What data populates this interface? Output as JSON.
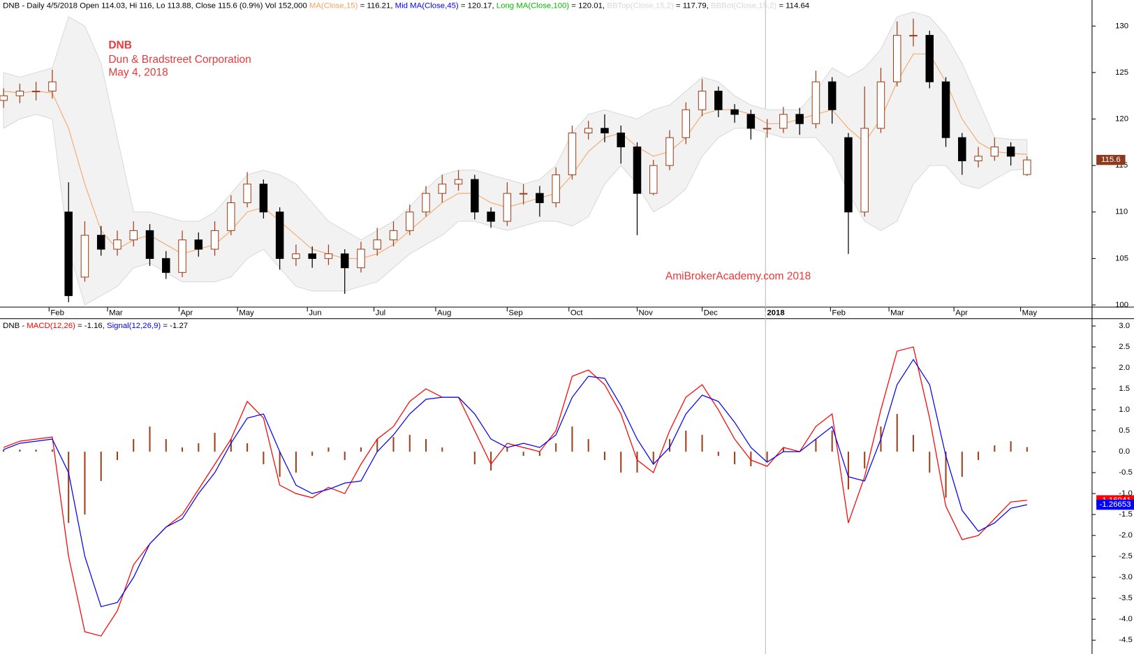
{
  "chart_data": [
    {
      "type": "candlestick",
      "header": [
        {
          "text": "DNB - Daily 4/5/2018 Open 114.03, Hi 116, Lo 113.88, Close 115.6 (0.9%) Vol 152,000 ",
          "color": "#000000"
        },
        {
          "text": "MA(Close,15)",
          "color": "#f4a460"
        },
        {
          "text": " = 116.21, ",
          "color": "#000000"
        },
        {
          "text": "Mid MA(Close,45)",
          "color": "#0000ff"
        },
        {
          "text": " = 120.17, ",
          "color": "#000000"
        },
        {
          "text": "Long MA(Close,100)",
          "color": "#00c000"
        },
        {
          "text": " = 120.01, ",
          "color": "#000000"
        },
        {
          "text": "BBTop(Close,15,2)",
          "color": "#d8d8d8"
        },
        {
          "text": " = 117.79, ",
          "color": "#000000"
        },
        {
          "text": "BBBot(Close,15,2)",
          "color": "#d8d8d8"
        },
        {
          "text": " = 114.64",
          "color": "#000000"
        }
      ],
      "annotations": [
        {
          "text": "DNB",
          "color": "#e8393b"
        },
        {
          "text": "Dun & Bradstreet Corporation",
          "color": "#e8393b"
        },
        {
          "text": "May 4, 2018",
          "color": "#e8393b"
        },
        {
          "text": "AmiBrokerAcademy.com   2018",
          "color": "#e8393b"
        }
      ],
      "up_color": "#a0401a",
      "down_color": "#000000",
      "xlim": [
        -0.22,
        67
      ],
      "xticks": [
        {
          "value": 2.8,
          "label": "Feb"
        },
        {
          "value": 6.4,
          "label": "Mar"
        },
        {
          "value": 10.8,
          "label": "Apr"
        },
        {
          "value": 14.4,
          "label": "May"
        },
        {
          "value": 18.7,
          "label": "Jun"
        },
        {
          "value": 22.8,
          "label": "Jul"
        },
        {
          "value": 26.6,
          "label": "Aug"
        },
        {
          "value": 31,
          "label": "Sep"
        },
        {
          "value": 34.8,
          "label": "Oct"
        },
        {
          "value": 39,
          "label": "Nov"
        },
        {
          "value": 43,
          "label": "Dec"
        },
        {
          "value": 46.9,
          "label": "2018"
        },
        {
          "value": 50.9,
          "label": "Feb"
        },
        {
          "value": 54.5,
          "label": "Mar"
        },
        {
          "value": 58.5,
          "label": "Apr"
        },
        {
          "value": 62.6,
          "label": "May"
        }
      ],
      "ylim": [
        99.77,
        132.8
      ],
      "yticks": [
        100,
        105,
        110,
        115,
        120,
        125,
        130
      ],
      "open": [
        122,
        122.5,
        123,
        123,
        110,
        103,
        107.5,
        106,
        107,
        108,
        105,
        103.5,
        107,
        106,
        108,
        111,
        113,
        110,
        105,
        105.5,
        105,
        105.5,
        104,
        106,
        107,
        108,
        110,
        112,
        113,
        113.5,
        110,
        109,
        112,
        112,
        111,
        114,
        118.5,
        119,
        118.5,
        117,
        112,
        115,
        118,
        121,
        123,
        121,
        120.5,
        119,
        119,
        120.5,
        119.5,
        124,
        118,
        110,
        119,
        124,
        129,
        129,
        124,
        118,
        115.5,
        116,
        117,
        114.03
      ],
      "high": [
        123.3,
        123.8,
        124,
        125.3,
        113.2,
        109,
        108.5,
        108,
        109,
        108.7,
        105.8,
        108,
        107.8,
        109,
        111.8,
        114.3,
        113.5,
        110.5,
        106.5,
        106.3,
        106.5,
        106,
        106.8,
        108.3,
        109,
        110.8,
        112.8,
        114,
        114.5,
        114,
        110.5,
        113.2,
        113,
        112.8,
        114.8,
        119.3,
        119.8,
        120.5,
        119.3,
        117.5,
        115.6,
        118.8,
        121.8,
        124.3,
        123.5,
        121.6,
        121,
        120,
        121.3,
        121.2,
        125.2,
        124.5,
        118.5,
        123.5,
        125.5,
        130.5,
        130.8,
        129.5,
        124.5,
        118.5,
        117,
        118,
        117.5,
        116
      ],
      "low": [
        121.2,
        121.7,
        122,
        122.2,
        100.3,
        102.5,
        105.3,
        105.3,
        106.3,
        104.2,
        102.8,
        103,
        105.2,
        105.3,
        107.5,
        110.5,
        109.3,
        103.8,
        104.2,
        104,
        104.3,
        101.2,
        103.5,
        105.3,
        106.3,
        107.5,
        109.5,
        111,
        112.3,
        109.2,
        108.3,
        108.5,
        110.8,
        109.5,
        110.5,
        113.5,
        117.8,
        117.5,
        115.2,
        107.5,
        111.8,
        114.5,
        117.3,
        120.3,
        120.2,
        119.6,
        117.8,
        118,
        118.5,
        118.3,
        119,
        119.5,
        105.5,
        109.5,
        118.5,
        123.5,
        127.8,
        123.3,
        117,
        114,
        114.8,
        115.5,
        115,
        113.88
      ],
      "close": [
        122.5,
        123,
        123,
        124,
        101,
        107.5,
        106,
        107,
        108,
        105,
        103.5,
        107,
        106,
        108,
        111,
        113,
        110,
        105,
        105.5,
        105,
        105.5,
        104,
        106,
        107,
        108,
        110,
        112,
        113,
        113.5,
        110,
        109,
        112,
        112,
        111,
        114,
        118.5,
        119,
        118.5,
        117,
        112,
        115,
        118,
        121,
        123,
        121,
        120.5,
        119,
        119,
        120.5,
        119.5,
        124,
        121,
        110,
        119,
        124,
        129,
        129,
        124,
        118,
        115.5,
        116,
        117,
        116,
        115.6
      ],
      "band": {
        "color": "#f2f2f2",
        "top": [
          125,
          124.5,
          125,
          125.5,
          131,
          130,
          126,
          118,
          110,
          110,
          109.5,
          109,
          109,
          110,
          112,
          114,
          114.5,
          114,
          113,
          111,
          109,
          108,
          107,
          108,
          109,
          110.5,
          112.5,
          114,
          114.5,
          114.5,
          114,
          113.5,
          113,
          113.5,
          115,
          118.5,
          120.5,
          121,
          120.5,
          120,
          121,
          121.5,
          123,
          124.5,
          124,
          122.5,
          121.5,
          121,
          121,
          121,
          123,
          125.5,
          124.5,
          125.5,
          127.5,
          131,
          131.5,
          131,
          129,
          126,
          122,
          118,
          117.8,
          117.79
        ],
        "bottom": [
          119,
          120,
          120.5,
          120,
          106,
          100,
          101,
          102,
          104,
          104.5,
          103.5,
          102.5,
          102.5,
          102.5,
          103,
          105,
          106,
          104,
          102,
          101.5,
          101.5,
          101.5,
          102,
          102.5,
          104,
          105.5,
          106.5,
          107.5,
          109,
          109,
          108.5,
          108,
          108.5,
          109,
          109,
          108.5,
          109.5,
          113,
          115,
          113,
          110,
          111,
          112.5,
          116,
          118,
          119,
          119,
          118.5,
          118,
          118,
          118,
          116,
          112,
          109,
          108,
          109,
          113,
          115,
          115,
          113,
          112.5,
          113.5,
          114.5,
          114.64
        ]
      },
      "ma": {
        "color": "#f4a460",
        "values": [
          123,
          122.8,
          123,
          122.8,
          119,
          113,
          108,
          106,
          107,
          107.5,
          106.5,
          105.5,
          106,
          106.5,
          108,
          110,
          110.5,
          109,
          107.5,
          106,
          105.5,
          105,
          105,
          105.5,
          106.5,
          108,
          109.5,
          111,
          112,
          112,
          111,
          110.5,
          111,
          111.5,
          112,
          114,
          116.5,
          118,
          118.5,
          117,
          116,
          116.5,
          118,
          120.5,
          121,
          121,
          120.5,
          119.5,
          119.5,
          120,
          120.5,
          121,
          119,
          117.5,
          120,
          124,
          127,
          127,
          124,
          120,
          117.5,
          116.5,
          116.3,
          116.21
        ]
      },
      "last_label_color": "#8b3a1e"
    },
    {
      "type": "macd",
      "header": [
        {
          "text": "DNB - ",
          "color": "#000000"
        },
        {
          "text": "MACD(12,26)",
          "color": "#ff0000"
        },
        {
          "text": " = -1.16, ",
          "color": "#000000"
        },
        {
          "text": "Signal(12,26,9)",
          "color": "#0000ff"
        },
        {
          "text": " = -1.27",
          "color": "#000000"
        }
      ],
      "ylim": [
        -4.83,
        3.14
      ],
      "yticks": [
        {
          "value": 3,
          "label": "3.0"
        },
        2.5,
        {
          "value": 2,
          "label": "2.0"
        },
        1.5,
        {
          "value": 1,
          "label": "1.0"
        },
        0.5,
        {
          "value": 0,
          "label": "0.0"
        },
        -0.5,
        {
          "value": -1,
          "label": "-1.0"
        },
        -1.5,
        {
          "value": -2,
          "label": "-2.0"
        },
        -2.5,
        {
          "value": -3,
          "label": "-3.0"
        },
        -3.5,
        {
          "value": -4,
          "label": "-4.0"
        },
        -4.5
      ],
      "histogram": {
        "color": "#a0401a",
        "values": [
          0.05,
          0.05,
          0.05,
          0.05,
          -1.7,
          -1.5,
          -0.7,
          -0.2,
          0.3,
          0.6,
          0.3,
          0.1,
          0.2,
          0.45,
          0.3,
          0.2,
          -0.3,
          -0.6,
          -0.5,
          -0.1,
          0.1,
          -0.2,
          0.1,
          0.3,
          0.35,
          0.4,
          0.3,
          0.1,
          0,
          -0.3,
          -0.45,
          0.1,
          -0.1,
          -0.1,
          0.2,
          0.6,
          0.3,
          -0.2,
          -0.5,
          -0.5,
          -0.3,
          0.3,
          0.5,
          0.4,
          -0.1,
          -0.3,
          -0.35,
          -0.25,
          0.1,
          0,
          0.3,
          0.5,
          -0.9,
          -0.4,
          0.6,
          0.9,
          0.4,
          -0.5,
          -1.1,
          -0.6,
          -0.2,
          0.15,
          0.25,
          0.11
        ]
      },
      "series": [
        {
          "name": "MACD(12,26)",
          "color": "#ff0000",
          "values": [
            0.1,
            0.25,
            0.3,
            0.35,
            -2.5,
            -4.3,
            -4.4,
            -3.8,
            -2.7,
            -2.2,
            -1.8,
            -1.5,
            -0.9,
            -0.3,
            0.3,
            1.2,
            0.8,
            -0.8,
            -1,
            -1.1,
            -0.85,
            -1,
            -0.3,
            0.3,
            0.6,
            1.2,
            1.5,
            1.3,
            1.3,
            0.5,
            -0.3,
            0.2,
            0.1,
            0,
            0.5,
            1.8,
            1.95,
            1.6,
            0.9,
            -0.2,
            -0.5,
            0.5,
            1.3,
            1.6,
            1,
            0.3,
            -0.2,
            -0.35,
            0.1,
            0,
            0.6,
            0.9,
            -1.7,
            -0.6,
            1,
            2.4,
            2.5,
            0.8,
            -1.3,
            -2.1,
            -2,
            -1.6,
            -1.2,
            -1.16041
          ]
        },
        {
          "name": "Signal(12,26,9)",
          "color": "#0000ff",
          "values": [
            0.05,
            0.2,
            0.25,
            0.3,
            -0.5,
            -2.5,
            -3.7,
            -3.6,
            -3,
            -2.2,
            -1.8,
            -1.6,
            -1,
            -0.5,
            0.2,
            0.8,
            0.9,
            0,
            -0.8,
            -1,
            -0.9,
            -0.75,
            -0.7,
            0,
            0.4,
            0.9,
            1.25,
            1.3,
            1.3,
            0.9,
            0.3,
            0.1,
            0.2,
            0.1,
            0.4,
            1.3,
            1.8,
            1.75,
            1.1,
            0.3,
            -0.3,
            0.1,
            0.9,
            1.35,
            1.2,
            0.7,
            0.1,
            -0.25,
            0,
            0,
            0.3,
            0.6,
            -0.6,
            -0.7,
            0.3,
            1.6,
            2.2,
            1.6,
            -0.1,
            -1.4,
            -1.9,
            -1.7,
            -1.35,
            -1.26653
          ]
        }
      ]
    }
  ]
}
